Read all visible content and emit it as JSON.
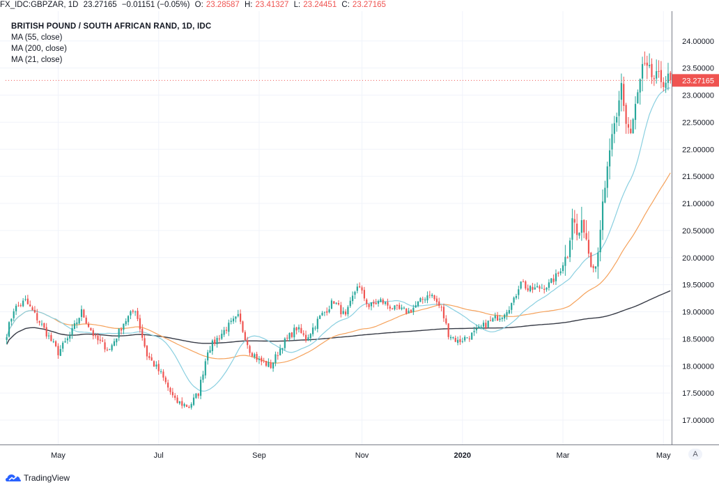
{
  "header": {
    "symbol": "FX_IDC:GBPZAR, 1D",
    "last": "23.27165",
    "change": "−0.01151 (−0.05%)",
    "open_label": "O:",
    "open": "23.28587",
    "high_label": "H:",
    "high": "23.41327",
    "low_label": "L:",
    "low": "23.24451",
    "close_label": "C:",
    "close": "23.27165"
  },
  "legend": {
    "title": "BRITISH POUND / SOUTH AFRICAN RAND, 1D, IDC",
    "ma1": "MA (55, close)",
    "ma2": "MA (200, close)",
    "ma3": "MA (21, close)"
  },
  "branding": "TradingView",
  "auto_button": "A",
  "chart_data": {
    "type": "candlestick",
    "price_axis_labels": [
      "24.00000",
      "23.50000",
      "23.00000",
      "22.50000",
      "22.00000",
      "21.50000",
      "21.00000",
      "20.50000",
      "20.00000",
      "19.50000",
      "19.00000",
      "18.50000",
      "18.00000",
      "17.50000",
      "17.00000"
    ],
    "price_ticks": [
      24.0,
      23.5,
      23.0,
      22.5,
      22.0,
      21.5,
      21.0,
      20.5,
      20.0,
      19.5,
      19.0,
      18.5,
      18.0,
      17.5,
      17.0
    ],
    "ylim": [
      16.55,
      24.55
    ],
    "time_axis_labels": [
      "May",
      "Jul",
      "Sep",
      "Nov",
      "2020",
      "Mar",
      "May"
    ],
    "time_axis_bold": [
      false,
      false,
      false,
      false,
      true,
      false,
      false
    ],
    "time_axis_index": [
      22,
      65,
      108,
      152,
      195,
      238,
      281
    ],
    "n_bars": 285,
    "last_price_label": "23.27165",
    "last_price": 23.27165,
    "colors": {
      "up": "#26a69a",
      "down": "#ef5350",
      "ma21": "#89cfe0",
      "ma55": "#f5a15a",
      "ma200": "#363a45",
      "grid": "#f0f3fa",
      "axis": "#787b86"
    },
    "close_anchors": [
      [
        0,
        18.6
      ],
      [
        3,
        19.05
      ],
      [
        8,
        19.2
      ],
      [
        15,
        18.75
      ],
      [
        22,
        18.25
      ],
      [
        27,
        18.55
      ],
      [
        32,
        19.0
      ],
      [
        38,
        18.5
      ],
      [
        44,
        18.3
      ],
      [
        50,
        18.8
      ],
      [
        55,
        19.05
      ],
      [
        60,
        18.2
      ],
      [
        66,
        17.85
      ],
      [
        72,
        17.35
      ],
      [
        78,
        17.25
      ],
      [
        82,
        17.5
      ],
      [
        86,
        18.3
      ],
      [
        90,
        18.5
      ],
      [
        94,
        18.7
      ],
      [
        99,
        18.9
      ],
      [
        104,
        18.3
      ],
      [
        108,
        18.1
      ],
      [
        113,
        18.0
      ],
      [
        118,
        18.4
      ],
      [
        124,
        18.7
      ],
      [
        128,
        18.5
      ],
      [
        134,
        18.9
      ],
      [
        140,
        19.2
      ],
      [
        145,
        18.9
      ],
      [
        150,
        19.5
      ],
      [
        155,
        19.1
      ],
      [
        160,
        19.2
      ],
      [
        166,
        19.05
      ],
      [
        172,
        19.0
      ],
      [
        176,
        19.15
      ],
      [
        181,
        19.35
      ],
      [
        186,
        19.05
      ],
      [
        189,
        18.6
      ],
      [
        193,
        18.45
      ],
      [
        200,
        18.6
      ],
      [
        206,
        18.8
      ],
      [
        212,
        18.95
      ],
      [
        217,
        19.2
      ],
      [
        220,
        19.6
      ],
      [
        223,
        19.4
      ],
      [
        229,
        19.45
      ],
      [
        232,
        19.5
      ],
      [
        236,
        19.7
      ],
      [
        240,
        20.1
      ],
      [
        242,
        20.8
      ],
      [
        244,
        20.4
      ],
      [
        247,
        20.6
      ],
      [
        250,
        19.9
      ],
      [
        252,
        19.85
      ],
      [
        254,
        20.6
      ],
      [
        256,
        21.2
      ],
      [
        258,
        22.0
      ],
      [
        261,
        22.5
      ],
      [
        263,
        23.2
      ],
      [
        265,
        22.5
      ],
      [
        267,
        22.3
      ],
      [
        270,
        23.0
      ],
      [
        272,
        23.5
      ],
      [
        275,
        23.4
      ],
      [
        277,
        23.3
      ],
      [
        284,
        23.27
      ]
    ]
  }
}
